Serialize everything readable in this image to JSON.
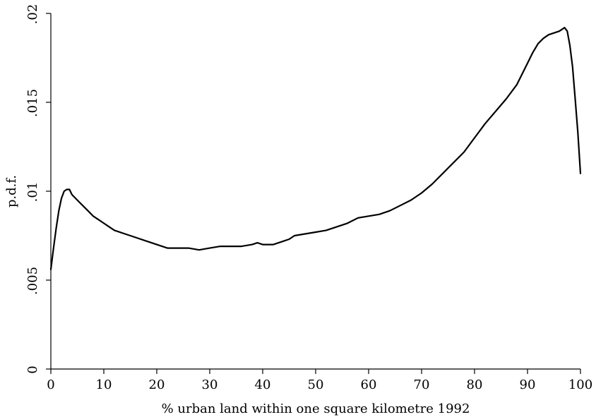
{
  "chart_data": {
    "type": "line",
    "title": "",
    "xlabel": "% urban land within one square kilometre 1992",
    "ylabel": "p.d.f.",
    "xlim": [
      0,
      100
    ],
    "ylim": [
      0,
      0.02
    ],
    "xticks": [
      0,
      10,
      20,
      30,
      40,
      50,
      60,
      70,
      80,
      90,
      100
    ],
    "xtick_labels": [
      "0",
      "10",
      "20",
      "30",
      "40",
      "50",
      "60",
      "70",
      "80",
      "90",
      "100"
    ],
    "yticks": [
      0,
      0.005,
      0.01,
      0.015,
      0.02
    ],
    "ytick_labels": [
      "0",
      ".005",
      ".01",
      ".015",
      ".02"
    ],
    "grid": false,
    "series": [
      {
        "x": [
          0,
          0.5,
          1,
          1.5,
          2,
          2.5,
          3,
          3.5,
          4,
          5,
          6,
          7,
          8,
          9,
          10,
          11,
          12,
          14,
          16,
          18,
          20,
          22,
          24,
          26,
          28,
          30,
          32,
          34,
          36,
          38,
          39,
          40,
          41,
          42,
          43,
          44,
          45,
          46,
          48,
          50,
          52,
          54,
          56,
          58,
          60,
          62,
          64,
          66,
          68,
          70,
          72,
          74,
          76,
          78,
          80,
          82,
          84,
          86,
          88,
          90,
          91,
          92,
          93,
          94,
          95,
          96,
          97,
          97.5,
          98,
          98.5,
          99,
          99.5,
          100
        ],
        "y": [
          0.0056,
          0.0068,
          0.0079,
          0.0089,
          0.0096,
          0.01,
          0.0101,
          0.0101,
          0.0098,
          0.0095,
          0.0092,
          0.0089,
          0.0086,
          0.0084,
          0.0082,
          0.008,
          0.0078,
          0.0076,
          0.0074,
          0.0072,
          0.007,
          0.0068,
          0.0068,
          0.0068,
          0.0067,
          0.0068,
          0.0069,
          0.0069,
          0.0069,
          0.007,
          0.0071,
          0.007,
          0.007,
          0.007,
          0.0071,
          0.0072,
          0.0073,
          0.0075,
          0.0076,
          0.0077,
          0.0078,
          0.008,
          0.0082,
          0.0085,
          0.0086,
          0.0087,
          0.0089,
          0.0092,
          0.0095,
          0.0099,
          0.0104,
          0.011,
          0.0116,
          0.0122,
          0.013,
          0.0138,
          0.0145,
          0.0152,
          0.016,
          0.0172,
          0.0178,
          0.0183,
          0.0186,
          0.0188,
          0.0189,
          0.019,
          0.0192,
          0.019,
          0.0182,
          0.017,
          0.0152,
          0.0133,
          0.011
        ]
      }
    ]
  }
}
